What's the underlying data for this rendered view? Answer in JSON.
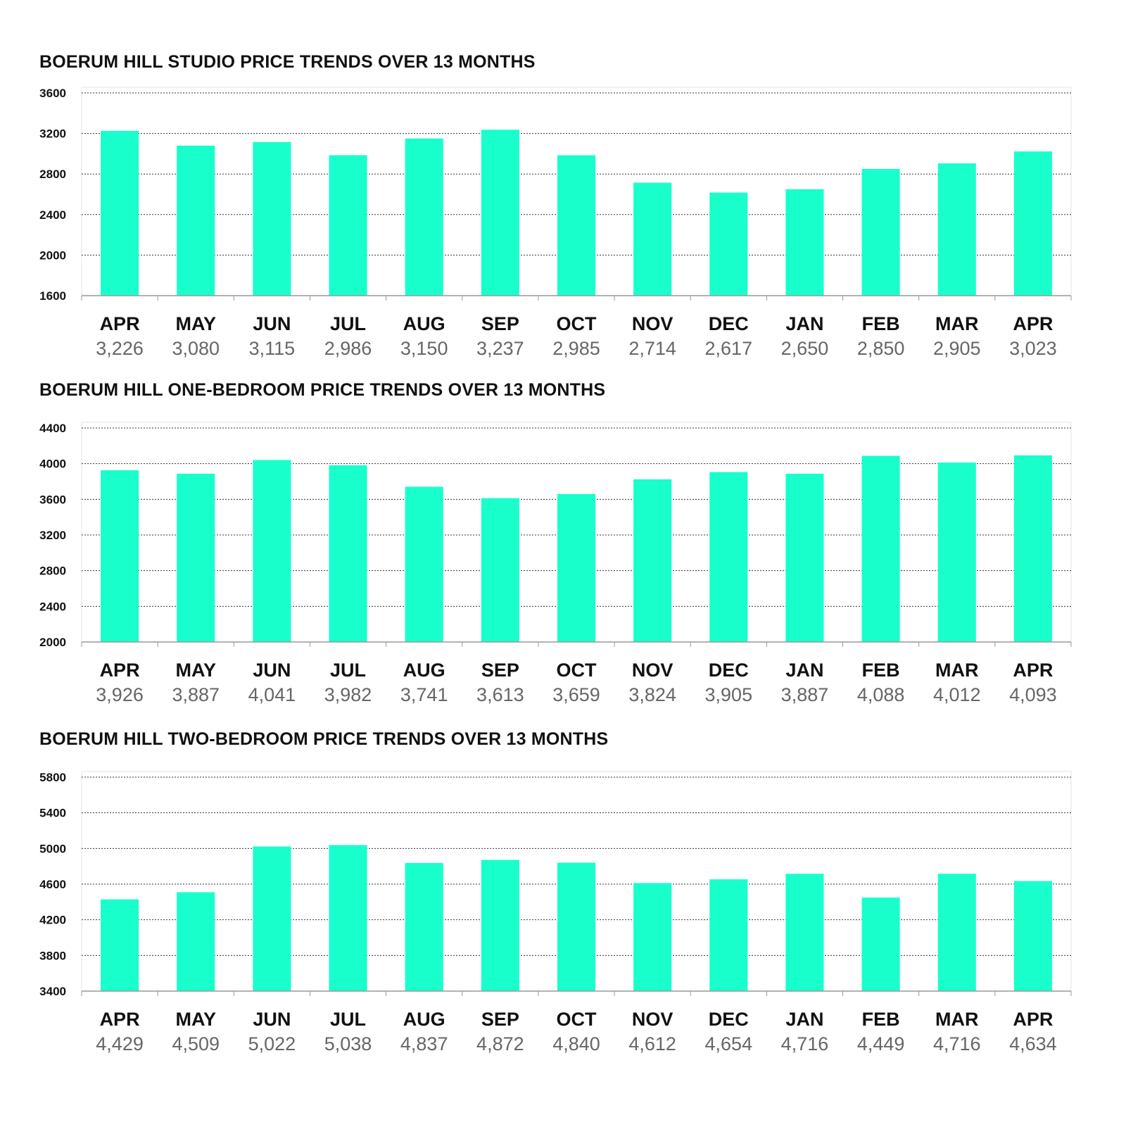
{
  "charts": [
    {
      "title": "BOERUM HILL STUDIO PRICE TRENDS OVER 13 MONTHS",
      "chart_data": {
        "type": "bar",
        "categories": [
          "APR",
          "MAY",
          "JUN",
          "JUL",
          "AUG",
          "SEP",
          "OCT",
          "NOV",
          "DEC",
          "JAN",
          "FEB",
          "MAR",
          "APR"
        ],
        "values": [
          3226,
          3080,
          3115,
          2986,
          3150,
          3237,
          2985,
          2714,
          2617,
          2650,
          2850,
          2905,
          3023
        ],
        "value_labels": [
          "3,226",
          "3,080",
          "3,115",
          "2,986",
          "3,150",
          "3,237",
          "2,985",
          "2,714",
          "2,617",
          "2,650",
          "2,850",
          "2,905",
          "3,023"
        ],
        "yticks": [
          "1600",
          "2000",
          "2400",
          "2800",
          "3200",
          "3600"
        ],
        "ylim": [
          1600,
          3600
        ],
        "grid": true,
        "bar_color": "#19FFCC"
      }
    },
    {
      "title": "BOERUM HILL ONE-BEDROOM PRICE TRENDS OVER 13 MONTHS",
      "chart_data": {
        "type": "bar",
        "categories": [
          "APR",
          "MAY",
          "JUN",
          "JUL",
          "AUG",
          "SEP",
          "OCT",
          "NOV",
          "DEC",
          "JAN",
          "FEB",
          "MAR",
          "APR"
        ],
        "values": [
          3926,
          3887,
          4041,
          3982,
          3741,
          3613,
          3659,
          3824,
          3905,
          3887,
          4088,
          4012,
          4093
        ],
        "value_labels": [
          "3,926",
          "3,887",
          "4,041",
          "3,982",
          "3,741",
          "3,613",
          "3,659",
          "3,824",
          "3,905",
          "3,887",
          "4,088",
          "4,012",
          "4,093"
        ],
        "yticks": [
          "2000",
          "2400",
          "2800",
          "3200",
          "3600",
          "4000",
          "4400"
        ],
        "ylim": [
          2000,
          4400
        ],
        "grid": true,
        "bar_color": "#19FFCC"
      }
    },
    {
      "title": "BOERUM HILL TWO-BEDROOM PRICE TRENDS OVER 13 MONTHS",
      "chart_data": {
        "type": "bar",
        "categories": [
          "APR",
          "MAY",
          "JUN",
          "JUL",
          "AUG",
          "SEP",
          "OCT",
          "NOV",
          "DEC",
          "JAN",
          "FEB",
          "MAR",
          "APR"
        ],
        "values": [
          4429,
          4509,
          5022,
          5038,
          4837,
          4872,
          4840,
          4612,
          4654,
          4716,
          4449,
          4716,
          4634
        ],
        "value_labels": [
          "4,429",
          "4,509",
          "5,022",
          "5,038",
          "4,837",
          "4,872",
          "4,840",
          "4,612",
          "4,654",
          "4,716",
          "4,449",
          "4,716",
          "4,634"
        ],
        "yticks": [
          "3400",
          "3800",
          "4200",
          "4600",
          "5000",
          "5400",
          "5800"
        ],
        "ylim": [
          3400,
          5800
        ],
        "grid": true,
        "bar_color": "#19FFCC"
      }
    }
  ]
}
